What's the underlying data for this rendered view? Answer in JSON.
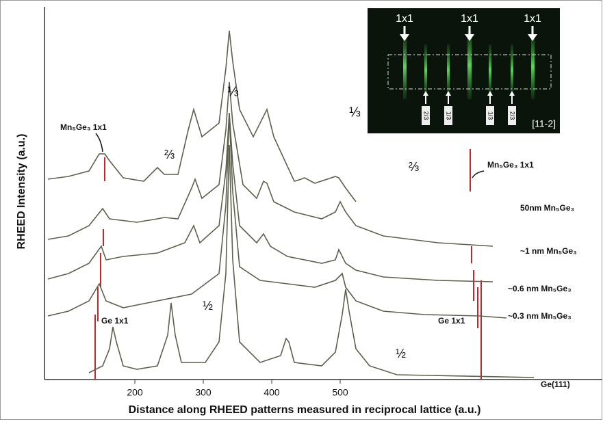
{
  "chart_data": {
    "type": "line",
    "xlabel": "Distance along RHEED patterns measured in reciprocal lattice (a.u.)",
    "ylabel": "RHEED Intensity (a.u.)",
    "xlim": [
      68,
      883
    ],
    "ylim": [
      0,
      550
    ],
    "xticks": [
      200,
      300,
      400,
      500
    ],
    "series": [
      {
        "name": "Ge(111)",
        "color": "#5e5e4c",
        "x": [
          133,
          153,
          163,
          168,
          173,
          183,
          203,
          233,
          248,
          253,
          259,
          268,
          303,
          323,
          333,
          338,
          343,
          353,
          383,
          413,
          421,
          425,
          433,
          473,
          493,
          503,
          508,
          513,
          523,
          543,
          583,
          783
        ],
        "values": [
          10,
          20,
          45,
          77,
          55,
          20,
          15,
          20,
          65,
          112,
          65,
          25,
          25,
          55,
          155,
          343,
          175,
          55,
          25,
          35,
          60,
          55,
          25,
          20,
          40,
          95,
          132,
          100,
          45,
          20,
          7,
          3
        ]
      },
      {
        "name": "~0.3 nm Mn₅Ge₃",
        "color": "#5e5e4c",
        "x": [
          73,
          103,
          133,
          148,
          158,
          183,
          233,
          283,
          323,
          333,
          338,
          343,
          353,
          383,
          423,
          463,
          493,
          503,
          508,
          523,
          563,
          623,
          703,
          743
        ],
        "values": [
          93,
          100,
          115,
          140,
          115,
          105,
          115,
          125,
          155,
          255,
          387,
          275,
          165,
          145,
          140,
          135,
          145,
          155,
          135,
          115,
          100,
          95,
          93,
          90
        ]
      },
      {
        "name": "~0.6 nm Mn₅Ge₃",
        "color": "#5e5e4c",
        "x": [
          73,
          103,
          133,
          151,
          158,
          183,
          233,
          273,
          286,
          295,
          323,
          333,
          338,
          343,
          353,
          378,
          388,
          398,
          423,
          473,
          493,
          498,
          508,
          523,
          563,
          643,
          723
        ],
        "values": [
          147,
          155,
          170,
          195,
          175,
          180,
          185,
          200,
          225,
          200,
          225,
          305,
          390,
          315,
          225,
          200,
          213,
          195,
          180,
          170,
          175,
          190,
          170,
          160,
          150,
          145,
          143
        ]
      },
      {
        "name": "~1 nm Mn₅Ge₃",
        "color": "#5e5e4c",
        "x": [
          73,
          103,
          133,
          153,
          163,
          203,
          233,
          243,
          263,
          283,
          288,
          298,
          323,
          333,
          338,
          343,
          358,
          378,
          388,
          393,
          403,
          433,
          473,
          493,
          500,
          508,
          523,
          563,
          643,
          723
        ],
        "values": [
          205,
          210,
          225,
          250,
          235,
          230,
          235,
          237,
          235,
          280,
          293,
          265,
          285,
          365,
          435,
          375,
          285,
          265,
          290,
          287,
          260,
          245,
          235,
          245,
          260,
          245,
          225,
          210,
          200,
          195
        ]
      },
      {
        "name": "50nm Mn₅Ge₃",
        "color": "#5e5e4c",
        "x": [
          73,
          103,
          133,
          148,
          156,
          163,
          183,
          213,
          228,
          233,
          243,
          263,
          278,
          286,
          298,
          323,
          333,
          338,
          343,
          353,
          373,
          388,
          393,
          403,
          433,
          443,
          448,
          463,
          493,
          498,
          508,
          523
        ],
        "values": [
          293,
          297,
          305,
          330,
          330,
          320,
          295,
          290,
          305,
          310,
          300,
          300,
          365,
          395,
          355,
          375,
          455,
          510,
          465,
          395,
          355,
          385,
          395,
          355,
          290,
          293,
          295,
          287,
          297,
          295,
          280,
          260
        ]
      }
    ],
    "annotations": [
      "Mn₅Ge₃ 1x1",
      "Mn₅Ge₃ 1x1",
      "⅓",
      "⅔",
      "⅓",
      "⅔",
      "½",
      "½",
      "Ge 1x1",
      "Ge 1x1"
    ],
    "inset": {
      "top_labels": [
        "1x1",
        "1x1",
        "1x1"
      ],
      "bottom_labels": [
        "2/3",
        "1/3",
        "1/3",
        "2/3"
      ],
      "direction": "[11-2]"
    }
  }
}
